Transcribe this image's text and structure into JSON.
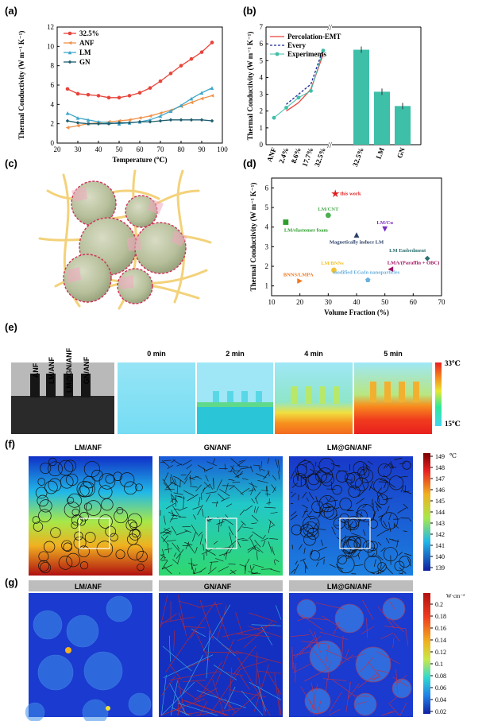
{
  "panel_labels": [
    "(a)",
    "(b)",
    "(c)",
    "(d)",
    "(e)",
    "(f)",
    "(g)"
  ],
  "chart_data": [
    {
      "type": "line",
      "id": "a",
      "ylabel": "Thermal Conductivity (W m⁻¹ K⁻¹)",
      "xlabel": "Temperature (℃)",
      "xlim": [
        20,
        100
      ],
      "ylim": [
        0,
        12
      ],
      "xticks": [
        20,
        30,
        40,
        50,
        60,
        70,
        80,
        90,
        100
      ],
      "yticks": [
        0,
        2,
        4,
        6,
        8,
        10,
        12
      ],
      "x": [
        25,
        30,
        35,
        40,
        45,
        50,
        55,
        60,
        65,
        70,
        75,
        80,
        85,
        90,
        95
      ],
      "series": [
        {
          "name": "32.5%",
          "color": "#e8433a",
          "marker": "circle",
          "values": [
            5.6,
            5.1,
            5.0,
            4.9,
            4.7,
            4.7,
            4.9,
            5.2,
            5.7,
            6.4,
            7.2,
            8.0,
            8.7,
            9.4,
            10.4
          ]
        },
        {
          "name": "ANF",
          "color": "#f0924a",
          "marker": "triangle-left",
          "values": [
            1.6,
            1.8,
            2.0,
            2.1,
            2.2,
            2.3,
            2.4,
            2.6,
            2.8,
            3.1,
            3.4,
            3.8,
            4.2,
            4.6,
            4.9
          ]
        },
        {
          "name": "LM",
          "color": "#3fa7c9",
          "marker": "triangle",
          "values": [
            3.1,
            2.6,
            2.4,
            2.2,
            2.1,
            2.0,
            2.1,
            2.2,
            2.4,
            2.8,
            3.3,
            3.9,
            4.6,
            5.2,
            5.7
          ]
        },
        {
          "name": "GN",
          "color": "#1e5e6e",
          "marker": "diamond",
          "values": [
            2.3,
            2.1,
            2.0,
            2.0,
            2.0,
            2.1,
            2.1,
            2.2,
            2.2,
            2.3,
            2.4,
            2.4,
            2.4,
            2.4,
            2.3
          ]
        }
      ]
    },
    {
      "type": "line+bar",
      "id": "b",
      "ylabel": "Thermal Conductivity (W m⁻¹ K⁻¹)",
      "ylim": [
        0,
        7
      ],
      "yticks": [
        0,
        1,
        2,
        3,
        4,
        5,
        6,
        7
      ],
      "categories": [
        "ANF",
        "2.4%",
        "8.6%",
        "17.7%",
        "32.5%"
      ],
      "experiments": [
        1.6,
        2.2,
        2.8,
        3.2,
        5.6
      ],
      "percolation_emt": [
        null,
        2.0,
        2.5,
        3.3,
        5.4
      ],
      "every": [
        null,
        2.4,
        3.0,
        3.6,
        5.7
      ],
      "bars": {
        "categories": [
          "32.5%",
          "LM",
          "GN"
        ],
        "values": [
          5.65,
          3.15,
          2.3
        ],
        "color": "#3dbfa8"
      },
      "legend": [
        "Percolation-EMT",
        "Every",
        "Experiments"
      ]
    },
    {
      "type": "scatter",
      "id": "d",
      "ylabel": "Thermal Conductivity (W m⁻¹ K⁻¹)",
      "xlabel": "Volume Fraction (%)",
      "xlim": [
        10,
        70
      ],
      "ylim": [
        0.5,
        6.5
      ],
      "xticks": [
        10,
        20,
        30,
        40,
        50,
        60,
        70
      ],
      "yticks": [
        1,
        2,
        3,
        4,
        5,
        6
      ],
      "points": [
        {
          "label": "this work",
          "x": 32.5,
          "y": 5.7,
          "color": "#e02020",
          "marker": "star"
        },
        {
          "label": "LM/CNT",
          "x": 30,
          "y": 4.6,
          "color": "#4caf50",
          "marker": "circle"
        },
        {
          "label": "LM/elastomer foam",
          "x": 15,
          "y": 4.25,
          "color": "#2e9e2e",
          "marker": "square"
        },
        {
          "label": "LM/Cu",
          "x": 50,
          "y": 3.9,
          "color": "#7b2cbf",
          "marker": "triangle-down"
        },
        {
          "label": "Magnetically induce LM",
          "x": 40,
          "y": 3.6,
          "color": "#2a3f66",
          "marker": "triangle"
        },
        {
          "label": "LM Embedment",
          "x": 65,
          "y": 2.4,
          "color": "#2a6e6e",
          "marker": "diamond"
        },
        {
          "label": "LM/BNNs",
          "x": 32,
          "y": 1.8,
          "color": "#f2c230",
          "marker": "circle"
        },
        {
          "label": "LMA/(Paraffin + OBC)",
          "x": 52,
          "y": 1.85,
          "color": "#a01060",
          "marker": "triangle-left"
        },
        {
          "label": "BNNS/LMPA",
          "x": 20,
          "y": 1.25,
          "color": "#f07820",
          "marker": "triangle-right"
        },
        {
          "label": "modified EGaIn nanoparticles",
          "x": 44,
          "y": 1.3,
          "color": "#6ab0de",
          "marker": "pentagon"
        }
      ]
    }
  ],
  "panel_e": {
    "samples": [
      "ANF",
      "LM/ANF",
      "LM@GN/ANF",
      "GN/ANF"
    ],
    "times": [
      "0 min",
      "2 min",
      "4 min",
      "5 min"
    ],
    "scale_max": "33℃",
    "scale_min": "15℃"
  },
  "panel_f": {
    "titles": [
      "LM/ANF",
      "GN/ANF",
      "LM@GN/ANF"
    ],
    "unit": "℃",
    "scale": [
      "149",
      "148",
      "147",
      "146",
      "145",
      "144",
      "143",
      "142",
      "141",
      "140",
      "139"
    ]
  },
  "panel_g": {
    "titles": [
      "LM/ANF",
      "GN/ANF",
      "LM@GN/ANF"
    ],
    "unit": "W·cm⁻²",
    "scale": [
      "0.2",
      "0.18",
      "0.16",
      "0.14",
      "0.12",
      "0.1",
      "0.08",
      "0.06",
      "0.04",
      "0.02"
    ]
  }
}
